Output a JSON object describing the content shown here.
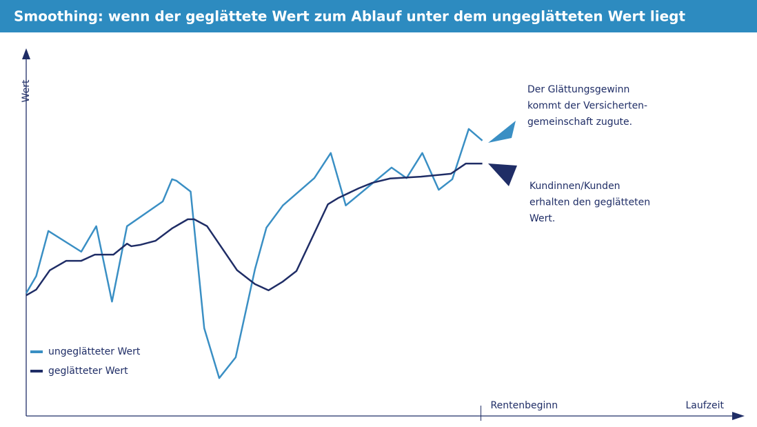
{
  "chart_data": {
    "type": "line",
    "title": "Smoothing: wenn der geglättete Wert zum Ablauf unter dem ungeglätteten Wert liegt",
    "x_label": "Laufzeit",
    "y_label": "Wert",
    "xlim": [
      0,
      100
    ],
    "ylim": [
      0,
      100
    ],
    "legend": "lower left",
    "series": [
      {
        "name": "ungeglätteter Wert",
        "color": "#3a8fc4",
        "x": [
          0,
          1.4,
          3.1,
          7.7,
          9.8,
          12.0,
          14.1,
          19.1,
          20.4,
          21.0,
          23.0,
          24.9,
          27.0,
          29.3,
          32.0,
          33.6,
          35.9,
          40.3,
          42.6,
          44.7,
          51.1,
          53.2,
          55.4,
          57.7,
          59.6,
          61.9,
          63.8
        ],
        "values": [
          33.7,
          38.4,
          50.8,
          45.1,
          52.1,
          31.4,
          52.1,
          58.9,
          65.0,
          64.6,
          61.6,
          24.1,
          10.4,
          16.1,
          40.3,
          51.7,
          57.8,
          65.3,
          72.2,
          57.8,
          68.2,
          65.3,
          72.2,
          62.1,
          65.0,
          78.8,
          75.6
        ]
      },
      {
        "name": "geglätteter Wert",
        "color": "#1f2d66",
        "x": [
          0,
          1.4,
          3.3,
          5.6,
          7.7,
          9.6,
          12.2,
          14.1,
          14.7,
          16.0,
          18.1,
          20.4,
          22.6,
          23.5,
          25.3,
          29.5,
          32.0,
          33.9,
          35.9,
          37.8,
          42.2,
          43.6,
          46.5,
          48.4,
          50.9,
          55.2,
          59.4,
          61.5,
          63.8
        ],
        "values": [
          33.1,
          34.7,
          40.0,
          42.6,
          42.6,
          44.3,
          44.3,
          47.3,
          46.6,
          47.0,
          48.1,
          51.5,
          54.0,
          54.0,
          52.1,
          40.0,
          36.2,
          34.5,
          36.9,
          39.8,
          58.1,
          59.8,
          62.5,
          64.0,
          65.2,
          65.7,
          66.5,
          69.3,
          69.3
        ]
      }
    ],
    "markers": [
      {
        "label": "Rentenbeginn",
        "x": 63.6
      }
    ],
    "annotations": [
      {
        "lines": [
          "Der Glättungsgewinn",
          "kommt der Versicherten-",
          "gemeinschaft zugute."
        ]
      },
      {
        "lines": [
          "Kundinnen/Kunden",
          "erhalten den geglätteten",
          "Wert."
        ]
      }
    ]
  }
}
